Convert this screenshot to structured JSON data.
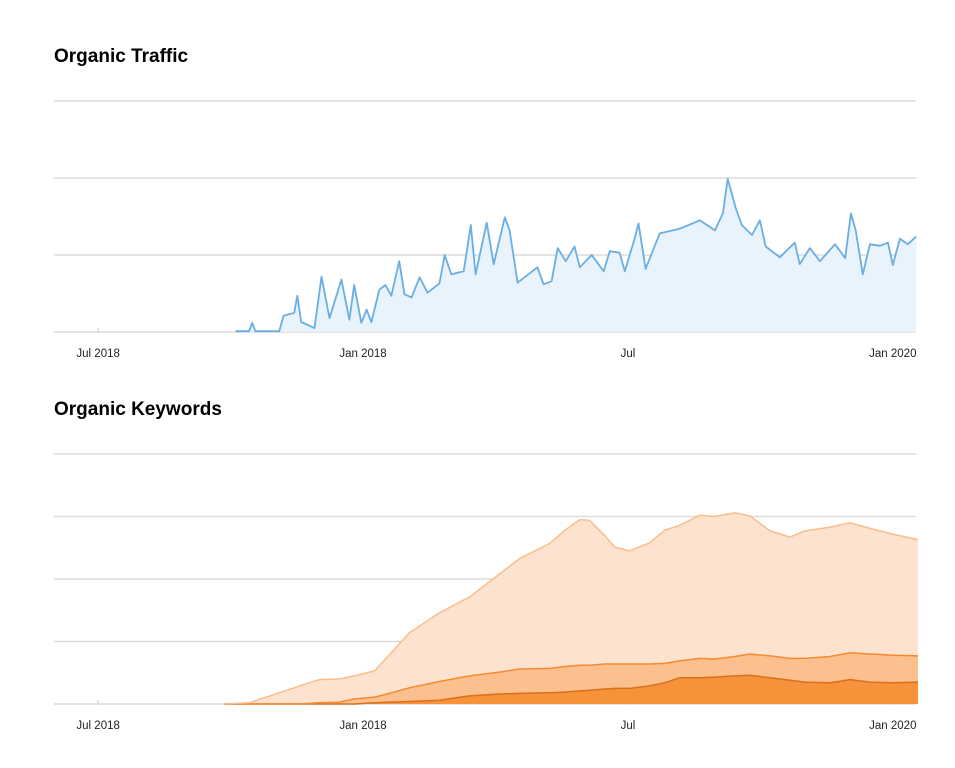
{
  "chart_data": [
    {
      "type": "area",
      "title": "Organic Traffic",
      "x": [
        3.11,
        3.42,
        3.49,
        3.56,
        4.1,
        4.2,
        4.44,
        4.51,
        4.6,
        4.9,
        5.06,
        5.24,
        5.51,
        5.69,
        5.8,
        5.96,
        6.08,
        6.19,
        6.37,
        6.51,
        6.64,
        6.82,
        6.94,
        7.1,
        7.28,
        7.46,
        7.73,
        7.85,
        8.0,
        8.28,
        8.44,
        8.55,
        8.8,
        8.96,
        9.21,
        9.32,
        9.5,
        9.95,
        10.09,
        10.27,
        10.41,
        10.59,
        10.79,
        10.91,
        11.18,
        11.45,
        11.59,
        11.81,
        11.93,
        12.15,
        12.24,
        12.4,
        12.72,
        13.17,
        13.63,
        13.97,
        14.15,
        14.26,
        14.44,
        14.58,
        14.81,
        14.99,
        15.12,
        15.44,
        15.78,
        15.89,
        16.12,
        16.35,
        16.69,
        16.92,
        17.05,
        17.16,
        17.32,
        17.48,
        17.71,
        17.89,
        18.0,
        18.16,
        18.34,
        18.53
      ],
      "series": [
        {
          "color": "#6aaee3",
          "fill": "#e8f3fc",
          "values": [
            0.01,
            0.01,
            0.12,
            0.01,
            0.01,
            0.21,
            0.25,
            0.47,
            0.13,
            0.05,
            0.72,
            0.18,
            0.68,
            0.16,
            0.61,
            0.12,
            0.29,
            0.13,
            0.55,
            0.61,
            0.47,
            0.92,
            0.49,
            0.45,
            0.71,
            0.51,
            0.63,
            1.0,
            0.75,
            0.79,
            1.39,
            0.75,
            1.42,
            0.88,
            1.49,
            1.32,
            0.64,
            0.84,
            0.62,
            0.66,
            1.09,
            0.92,
            1.11,
            0.84,
            1.0,
            0.79,
            1.05,
            1.03,
            0.79,
            1.21,
            1.41,
            0.82,
            1.28,
            1.34,
            1.45,
            1.32,
            1.54,
            1.99,
            1.61,
            1.39,
            1.26,
            1.45,
            1.11,
            0.97,
            1.16,
            0.88,
            1.09,
            0.92,
            1.14,
            0.96,
            1.54,
            1.32,
            0.75,
            1.14,
            1.12,
            1.16,
            0.87,
            1.21,
            1.14,
            1.24
          ]
        }
      ],
      "xlim": [
        -1,
        18.57
      ],
      "xticks": [
        {
          "value": 0,
          "label": "Jul 2018"
        },
        {
          "value": 6,
          "label": "Jan 2018"
        },
        {
          "value": 12,
          "label": "Jul"
        },
        {
          "value": 18,
          "label": "Jan 2020"
        }
      ],
      "ylim": [
        0,
        3
      ],
      "yticks": [
        0,
        1,
        2,
        3
      ],
      "grid": true
    },
    {
      "type": "stacked_area",
      "title": "Organic Keywords",
      "x": [
        2.86,
        3.42,
        4.1,
        4.56,
        5.01,
        5.46,
        5.8,
        6.26,
        6.6,
        7.05,
        7.73,
        8.41,
        9.09,
        9.55,
        10.23,
        10.57,
        10.91,
        11.13,
        11.47,
        11.7,
        12.04,
        12.49,
        12.83,
        13.17,
        13.63,
        13.97,
        14.42,
        14.76,
        15.22,
        15.67,
        16.01,
        16.58,
        17.03,
        17.48,
        18.05,
        18.57
      ],
      "series": [
        {
          "color": "#d8701e",
          "fill": "#f7913a",
          "values": [
            0,
            0,
            0,
            0,
            0,
            0,
            0,
            0.02,
            0.03,
            0.04,
            0.06,
            0.13,
            0.16,
            0.17,
            0.18,
            0.19,
            0.21,
            0.22,
            0.24,
            0.25,
            0.25,
            0.29,
            0.34,
            0.42,
            0.42,
            0.43,
            0.45,
            0.46,
            0.42,
            0.38,
            0.35,
            0.34,
            0.39,
            0.35,
            0.34,
            0.35
          ]
        },
        {
          "color": "#f78a30",
          "fill": "#fbc08e",
          "values": [
            0,
            0,
            0,
            0,
            0.02,
            0.03,
            0.08,
            0.09,
            0.14,
            0.22,
            0.3,
            0.32,
            0.35,
            0.39,
            0.39,
            0.41,
            0.41,
            0.4,
            0.4,
            0.39,
            0.39,
            0.35,
            0.31,
            0.27,
            0.31,
            0.29,
            0.31,
            0.34,
            0.35,
            0.35,
            0.38,
            0.42,
            0.43,
            0.45,
            0.44,
            0.42
          ]
        },
        {
          "color": "#f9bd8a",
          "fill": "#fde3cf",
          "values": [
            0,
            0.02,
            0.18,
            0.29,
            0.37,
            0.37,
            0.37,
            0.42,
            0.62,
            0.88,
            1.1,
            1.26,
            1.57,
            1.77,
            2.0,
            2.18,
            2.33,
            2.32,
            2.06,
            1.87,
            1.81,
            1.94,
            2.13,
            2.17,
            2.29,
            2.28,
            2.3,
            2.21,
            2.0,
            1.94,
            2.04,
            2.07,
            2.08,
            2.01,
            1.93,
            1.86
          ]
        }
      ],
      "xlim": [
        -1,
        18.57
      ],
      "xticks": [
        {
          "value": 0,
          "label": "Jul 2018"
        },
        {
          "value": 6,
          "label": "Jan 2018"
        },
        {
          "value": 12,
          "label": "Jul"
        },
        {
          "value": 18,
          "label": "Jan 2020"
        }
      ],
      "ylim": [
        0,
        4
      ],
      "yticks": [
        0,
        1,
        2,
        3,
        4
      ],
      "grid": true
    }
  ]
}
